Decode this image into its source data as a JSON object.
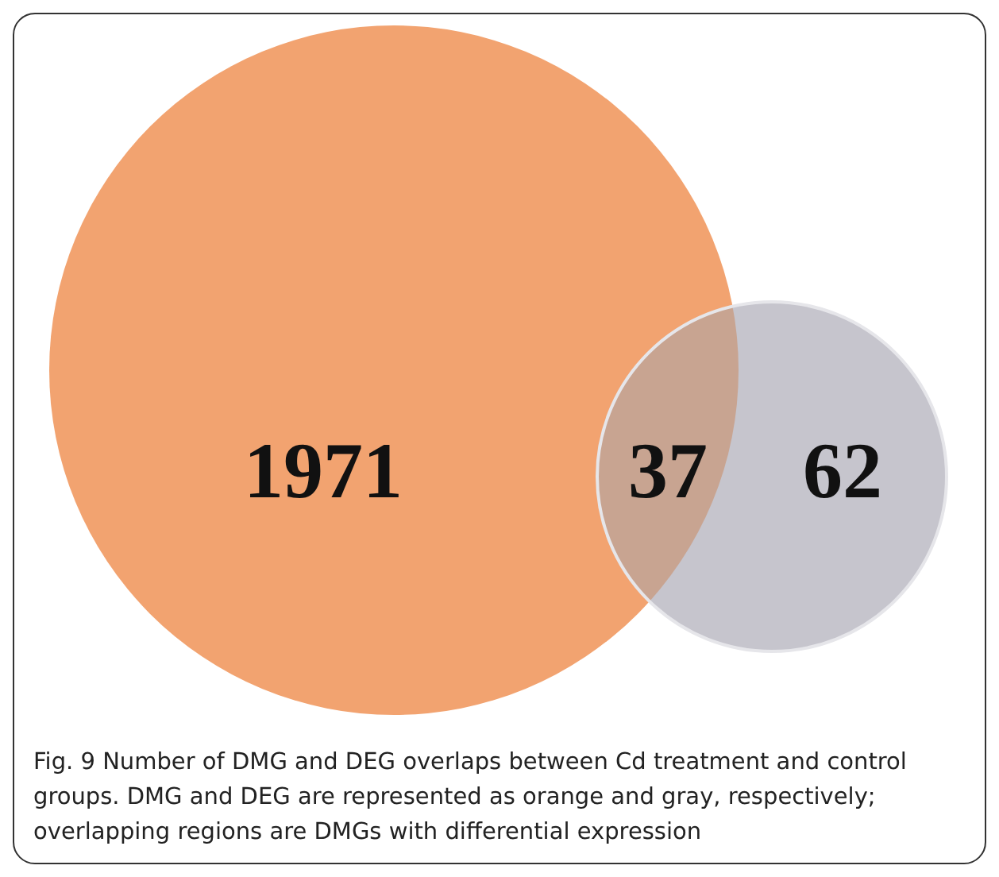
{
  "chart_data": {
    "type": "other",
    "categories": [
      null,
      null,
      null
    ],
    "values": [
      1971,
      37,
      62
    ],
    "colors": [
      "#f2a370",
      "#c8a491",
      "#c6c5cd"
    ],
    "data_labels": true,
    "annotations": [
      "Fig. 9 Number of DMG and DEG overlaps between Cd treatment and control groups. DMG and DEG are represented as orange and gray, respectively; overlapping regions are DMGs with differential expression"
    ]
  }
}
